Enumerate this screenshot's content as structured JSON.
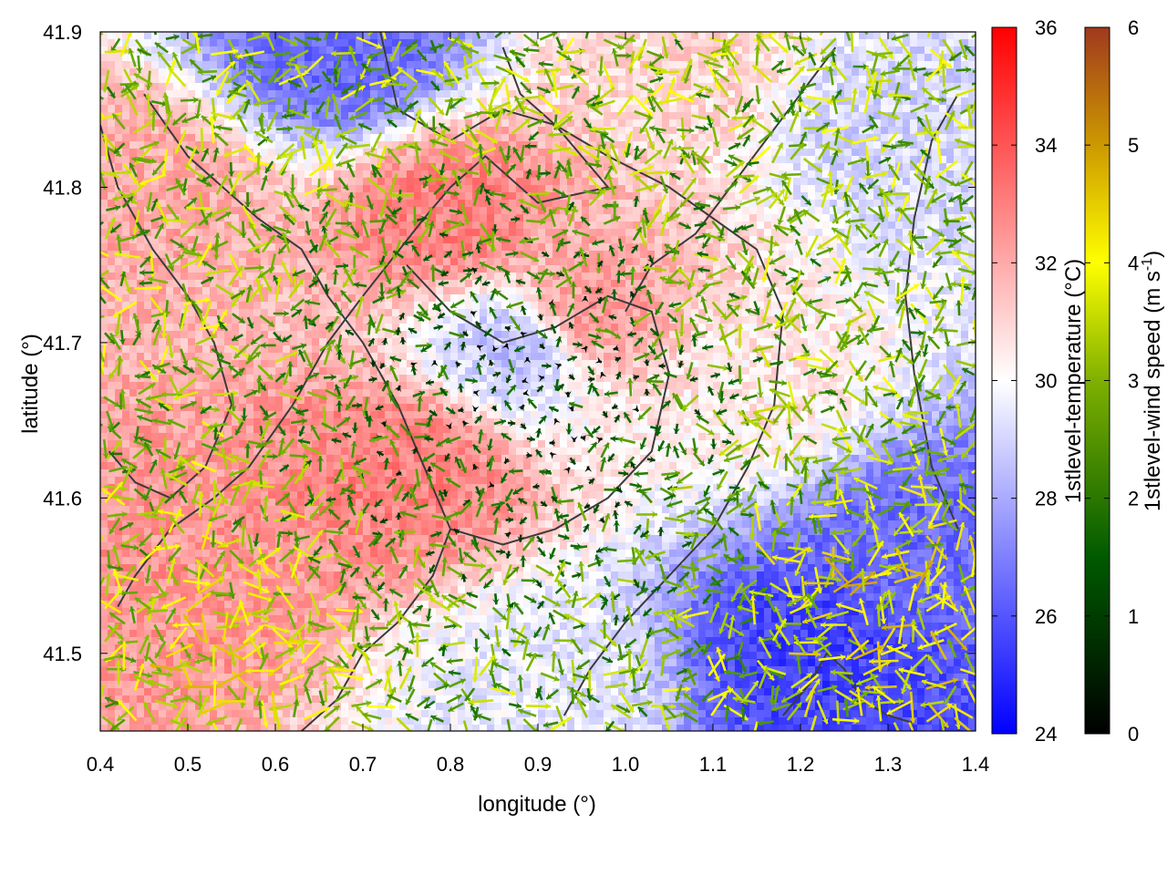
{
  "chart_data": {
    "type": "heatmap",
    "title": "",
    "xlabel": "longitude (°)",
    "ylabel": "latitude (°)",
    "xlim": [
      0.4,
      1.4
    ],
    "ylim": [
      41.45,
      41.9
    ],
    "x_ticks": [
      "0.4",
      "0.5",
      "0.6",
      "0.7",
      "0.8",
      "0.9",
      "1.0",
      "1.1",
      "1.2",
      "1.3",
      "1.4"
    ],
    "y_ticks": [
      "41.5",
      "41.6",
      "41.7",
      "41.8",
      "41.9"
    ],
    "temperature_colorbar": {
      "label_main": "1stlevel-temperature (°C)",
      "range": [
        24,
        36
      ],
      "ticks": [
        "24",
        "26",
        "28",
        "30",
        "32",
        "34",
        "36"
      ],
      "colors": [
        "#0000ff",
        "#ffffff",
        "#ff0000"
      ]
    },
    "wind_colorbar": {
      "label_main": "1stlevel-wind speed (m s",
      "label_sup": "-1",
      "label_end": ")",
      "range": [
        0,
        6
      ],
      "ticks": [
        "0",
        "1",
        "2",
        "3",
        "4",
        "5",
        "6"
      ],
      "colors": [
        "#000000",
        "#006400",
        "#66aa00",
        "#ffff00",
        "#cc9900",
        "#a0522d"
      ]
    },
    "temperature_field_features": [
      {
        "lon": 0.67,
        "lat": 41.89,
        "temp": 26.5
      },
      {
        "lon": 0.45,
        "lat": 41.8,
        "temp": 32.0
      },
      {
        "lon": 0.8,
        "lat": 41.78,
        "temp": 33.0
      },
      {
        "lon": 0.95,
        "lat": 41.72,
        "temp": 32.5
      },
      {
        "lon": 0.75,
        "lat": 41.62,
        "temp": 33.0
      },
      {
        "lon": 0.5,
        "lat": 41.55,
        "temp": 32.5
      },
      {
        "lon": 0.88,
        "lat": 41.7,
        "temp": 28.5
      },
      {
        "lon": 1.22,
        "lat": 41.5,
        "temp": 25.5
      },
      {
        "lon": 1.33,
        "lat": 41.57,
        "temp": 26.5
      },
      {
        "lon": 1.32,
        "lat": 41.84,
        "temp": 29.0
      },
      {
        "lon": 1.15,
        "lat": 41.67,
        "temp": 30.5
      },
      {
        "lon": 1.05,
        "lat": 41.88,
        "temp": 31.0
      },
      {
        "lon": 0.9,
        "lat": 41.48,
        "temp": 29.5
      }
    ],
    "terrain_contours": [
      [
        [
          0.72,
          41.9
        ],
        [
          0.74,
          41.85
        ],
        [
          0.8,
          41.83
        ],
        [
          0.86,
          41.85
        ],
        [
          0.92,
          41.84
        ],
        [
          0.98,
          41.8
        ],
        [
          0.9,
          41.79
        ],
        [
          0.84,
          41.82
        ],
        [
          0.8,
          41.8
        ],
        [
          0.77,
          41.78
        ],
        [
          0.7,
          41.73
        ],
        [
          0.66,
          41.7
        ],
        [
          0.62,
          41.66
        ],
        [
          0.57,
          41.62
        ],
        [
          0.53,
          41.6
        ],
        [
          0.48,
          41.58
        ],
        [
          0.44,
          41.55
        ],
        [
          0.42,
          41.53
        ]
      ],
      [
        [
          0.86,
          41.89
        ],
        [
          0.88,
          41.86
        ],
        [
          0.92,
          41.84
        ],
        [
          0.98,
          41.82
        ],
        [
          1.05,
          41.8
        ],
        [
          1.1,
          41.78
        ],
        [
          1.15,
          41.76
        ],
        [
          1.18,
          41.72
        ],
        [
          1.17,
          41.66
        ],
        [
          1.14,
          41.62
        ],
        [
          1.1,
          41.58
        ],
        [
          1.05,
          41.55
        ],
        [
          1.0,
          41.52
        ],
        [
          0.96,
          41.49
        ],
        [
          0.93,
          41.46
        ]
      ],
      [
        [
          0.45,
          41.86
        ],
        [
          0.5,
          41.82
        ],
        [
          0.58,
          41.78
        ],
        [
          0.63,
          41.76
        ],
        [
          0.66,
          41.73
        ],
        [
          0.7,
          41.7
        ],
        [
          0.74,
          41.66
        ],
        [
          0.77,
          41.62
        ],
        [
          0.8,
          41.58
        ],
        [
          0.78,
          41.55
        ],
        [
          0.74,
          41.52
        ],
        [
          0.7,
          41.5
        ],
        [
          0.67,
          41.47
        ],
        [
          0.63,
          41.45
        ]
      ],
      [
        [
          0.75,
          41.75
        ],
        [
          0.8,
          41.72
        ],
        [
          0.86,
          41.7
        ],
        [
          0.92,
          41.71
        ],
        [
          0.98,
          41.73
        ],
        [
          1.03,
          41.72
        ],
        [
          1.05,
          41.68
        ],
        [
          1.03,
          41.63
        ],
        [
          0.98,
          41.6
        ],
        [
          0.92,
          41.58
        ],
        [
          0.86,
          41.57
        ],
        [
          0.8,
          41.58
        ]
      ],
      [
        [
          0.4,
          41.84
        ],
        [
          0.42,
          41.8
        ],
        [
          0.46,
          41.76
        ],
        [
          0.5,
          41.73
        ],
        [
          0.53,
          41.7
        ],
        [
          0.55,
          41.66
        ],
        [
          0.52,
          41.62
        ],
        [
          0.48,
          41.6
        ],
        [
          0.44,
          41.61
        ],
        [
          0.41,
          41.63
        ]
      ],
      [
        [
          1.18,
          41.46
        ],
        [
          1.21,
          41.48
        ],
        [
          1.23,
          41.5
        ],
        [
          1.25,
          41.49
        ],
        [
          1.27,
          41.47
        ],
        [
          1.3,
          41.46
        ],
        [
          1.33,
          41.455
        ]
      ],
      [
        [
          1.38,
          41.86
        ],
        [
          1.35,
          41.83
        ],
        [
          1.33,
          41.78
        ],
        [
          1.32,
          41.73
        ],
        [
          1.33,
          41.68
        ],
        [
          1.35,
          41.62
        ],
        [
          1.38,
          41.58
        ]
      ],
      [
        [
          1.0,
          41.72
        ],
        [
          1.03,
          41.75
        ],
        [
          1.08,
          41.77
        ],
        [
          1.12,
          41.8
        ],
        [
          1.16,
          41.83
        ],
        [
          1.2,
          41.86
        ],
        [
          1.24,
          41.89
        ]
      ]
    ]
  }
}
